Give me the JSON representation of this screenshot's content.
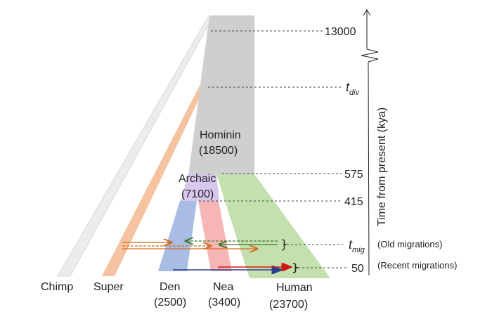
{
  "populations": {
    "hominin": {
      "name": "Hominin",
      "size": "(18500)"
    },
    "archaic": {
      "name": "Archaic",
      "size": "(7100)"
    },
    "den": {
      "name": "Den",
      "size": "(2500)"
    },
    "nea": {
      "name": "Nea",
      "size": "(3400)"
    },
    "human": {
      "name": "Human",
      "size": "(23700)"
    },
    "chimp": {
      "name": "Chimp"
    },
    "super": {
      "name": "Super"
    }
  },
  "axis": {
    "title": "Time from present (kya)",
    "ticks": {
      "t13000": "13000",
      "tdiv": "t",
      "tdiv_sub": "div",
      "t575": "575",
      "t415": "415",
      "tmig": "t",
      "tmig_sub": "mig",
      "t50": "50"
    },
    "notes": {
      "old": "(Old migrations)",
      "recent": "(Recent migrations)"
    }
  },
  "colors": {
    "hominin": "#cfcfcf",
    "archaic": "#d8c8ee",
    "den": "#a9bde4",
    "nea": "#f6b6b6",
    "human": "#c3e0ae",
    "super": "#f5c3a0",
    "chimp": "#ececec",
    "orange": "#d2691e",
    "green": "#3f7a2e",
    "blue": "#2b3f8f",
    "red": "#d01818"
  }
}
